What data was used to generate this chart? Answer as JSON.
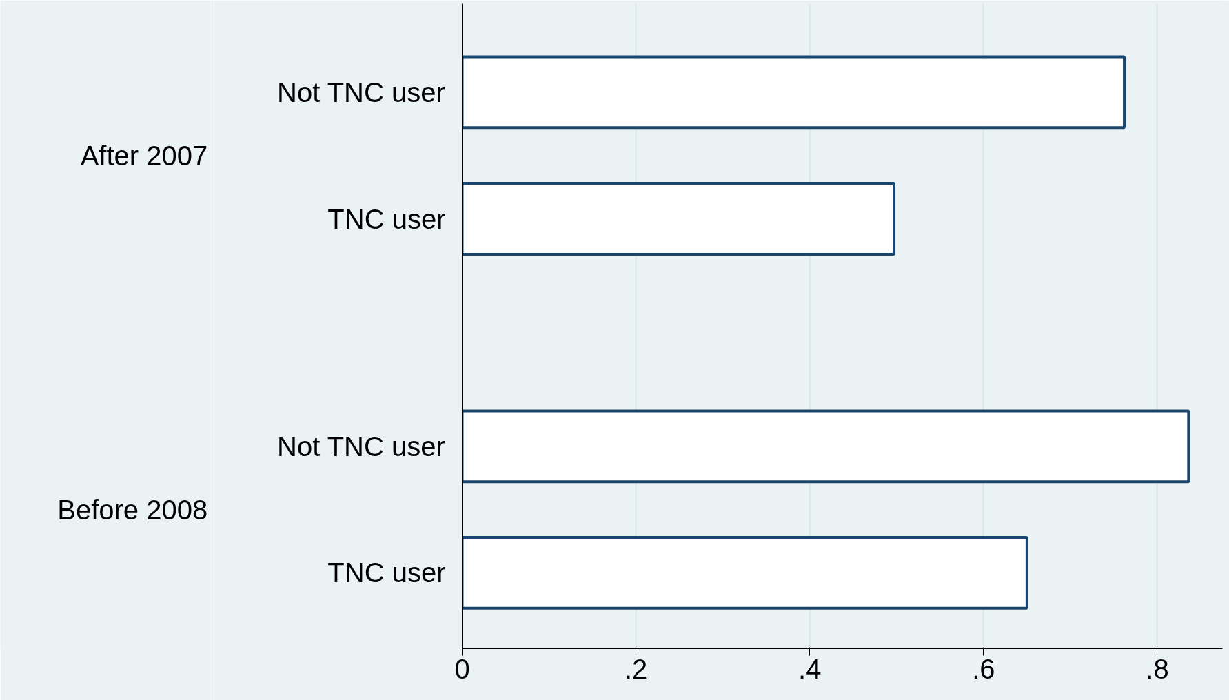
{
  "chart_data": {
    "type": "bar",
    "orientation": "horizontal",
    "categories": [
      "Not TNC user",
      "TNC user",
      "Not TNC user",
      "TNC user"
    ],
    "values": [
      0.762,
      0.497,
      0.836,
      0.65
    ],
    "color": "#1a476f",
    "xlim": [
      0,
      0.875
    ],
    "xticks": [
      0,
      {
        "value": 0.2,
        "label": ".2"
      },
      {
        "value": 0.4,
        "label": ".4"
      },
      {
        "value": 0.6,
        "label": ".6"
      },
      {
        "value": 0.8,
        "label": ".8"
      }
    ],
    "grid": "x",
    "annotations": [
      "After 2007",
      "Before 2008"
    ]
  }
}
